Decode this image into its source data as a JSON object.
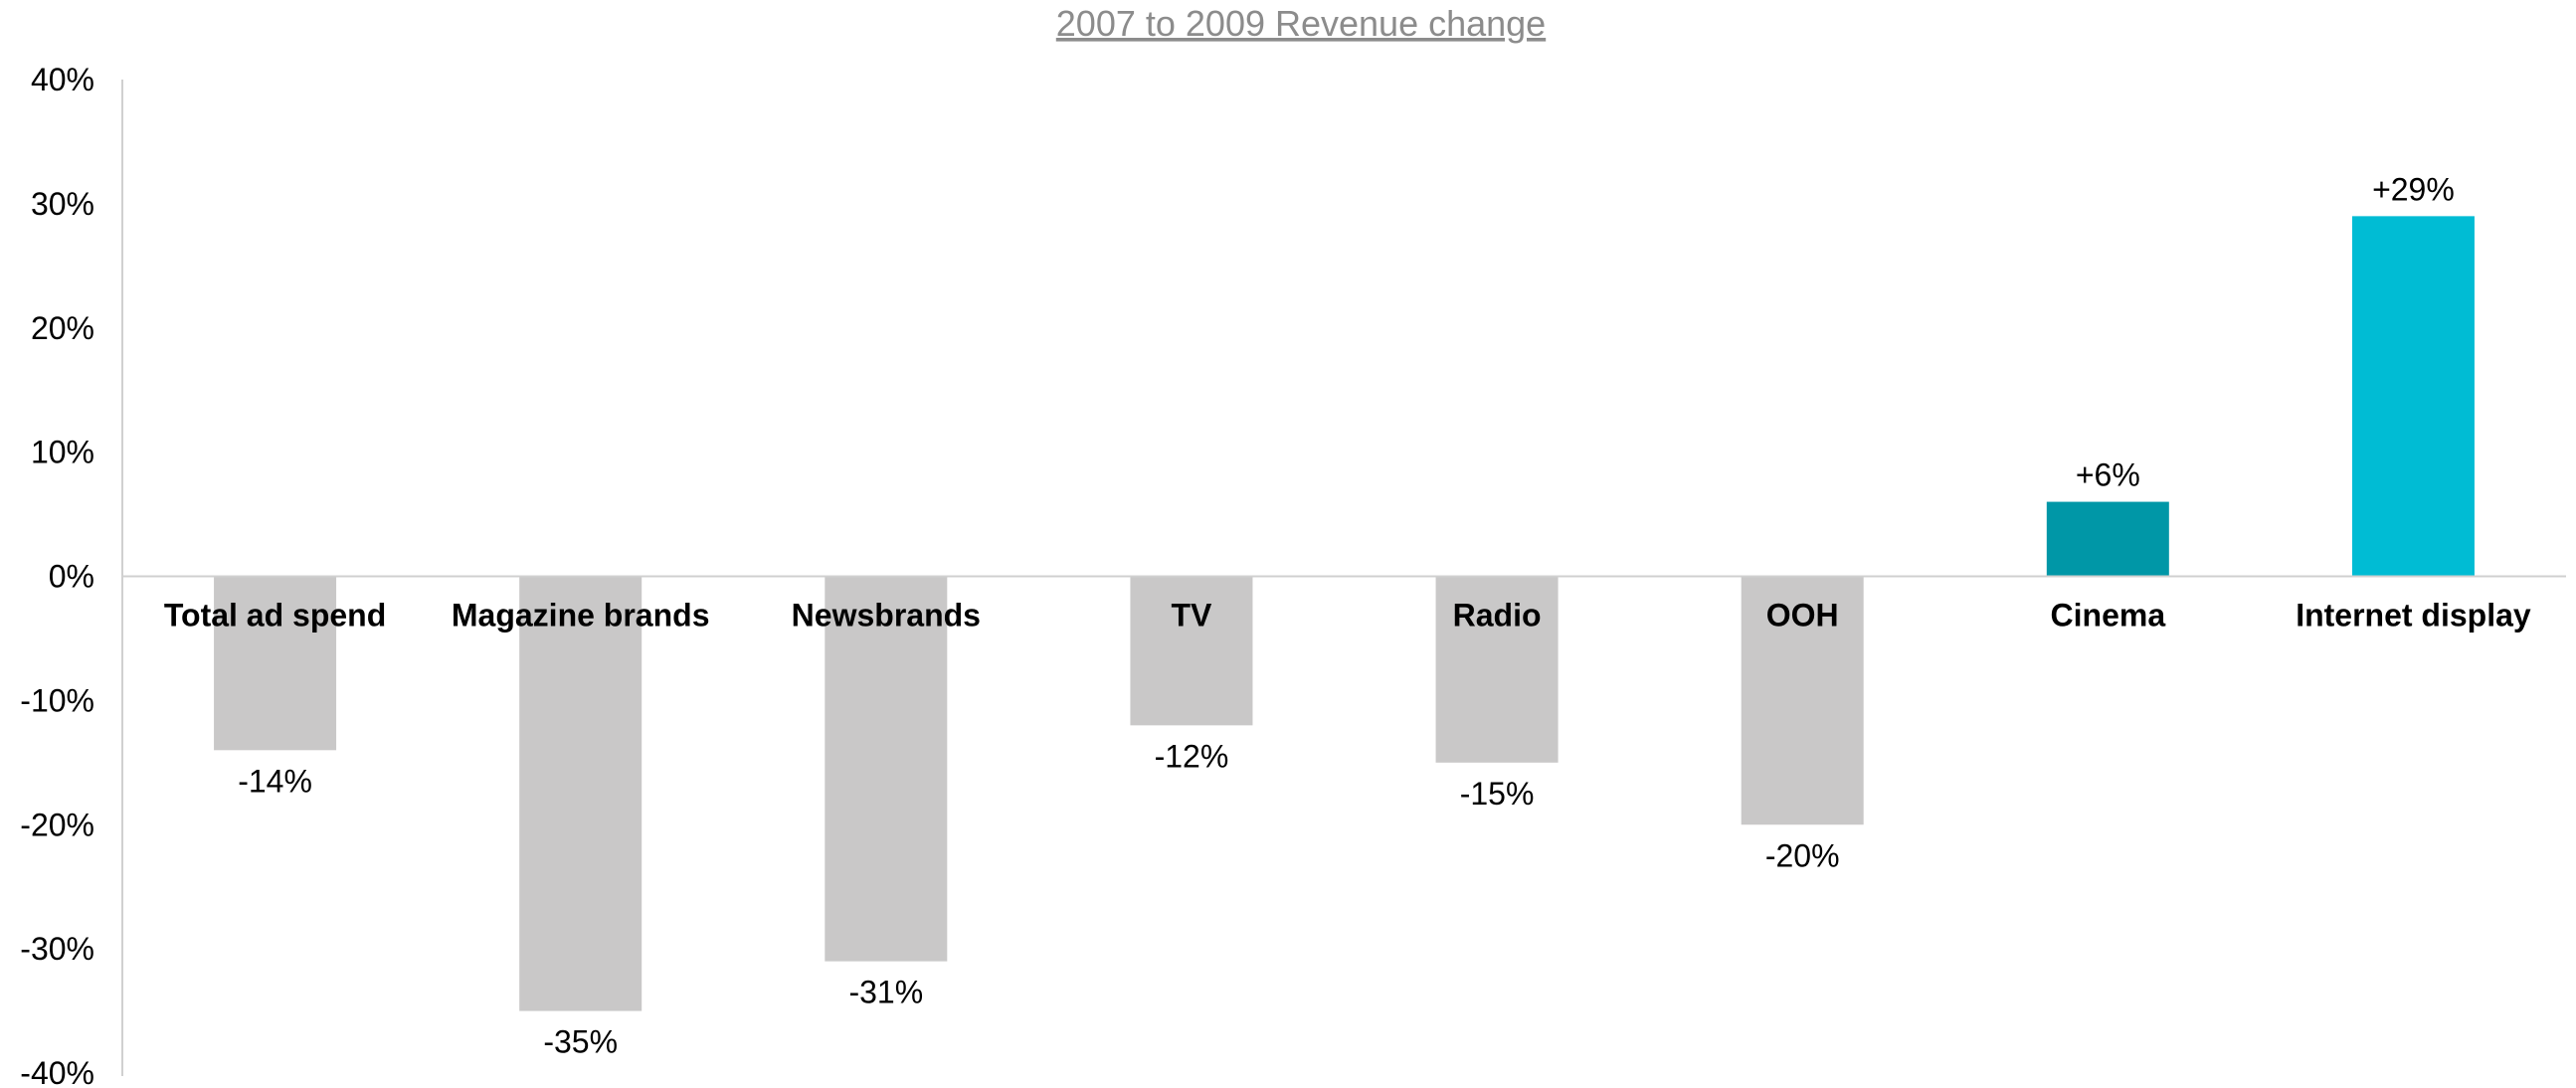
{
  "chart_data": {
    "type": "bar",
    "title": "2007 to 2009 Revenue change",
    "xlabel": "",
    "ylabel": "",
    "ylim": [
      -40,
      40
    ],
    "yticks": [
      40,
      30,
      20,
      10,
      0,
      -10,
      -20,
      -30,
      -40
    ],
    "ytick_labels": [
      "40%",
      "30%",
      "20%",
      "10%",
      "0%",
      "-10%",
      "-20%",
      "-30%",
      "-40%"
    ],
    "categories": [
      "Total ad spend",
      "Magazine brands",
      "Newsbrands",
      "TV",
      "Radio",
      "OOH",
      "Cinema",
      "Internet display"
    ],
    "values": [
      -14,
      -35,
      -31,
      -12,
      -15,
      -20,
      6,
      29
    ],
    "data_labels": [
      "-14%",
      "-35%",
      "-31%",
      "-12%",
      "-15%",
      "-20%",
      "+6%",
      "+29%"
    ],
    "bar_colors": [
      "#c9c8c8",
      "#c9c8c8",
      "#c9c8c8",
      "#c9c8c8",
      "#c9c8c8",
      "#c9c8c8",
      "#0097a7",
      "#00bcd4"
    ],
    "grid": false,
    "legend": "none"
  }
}
